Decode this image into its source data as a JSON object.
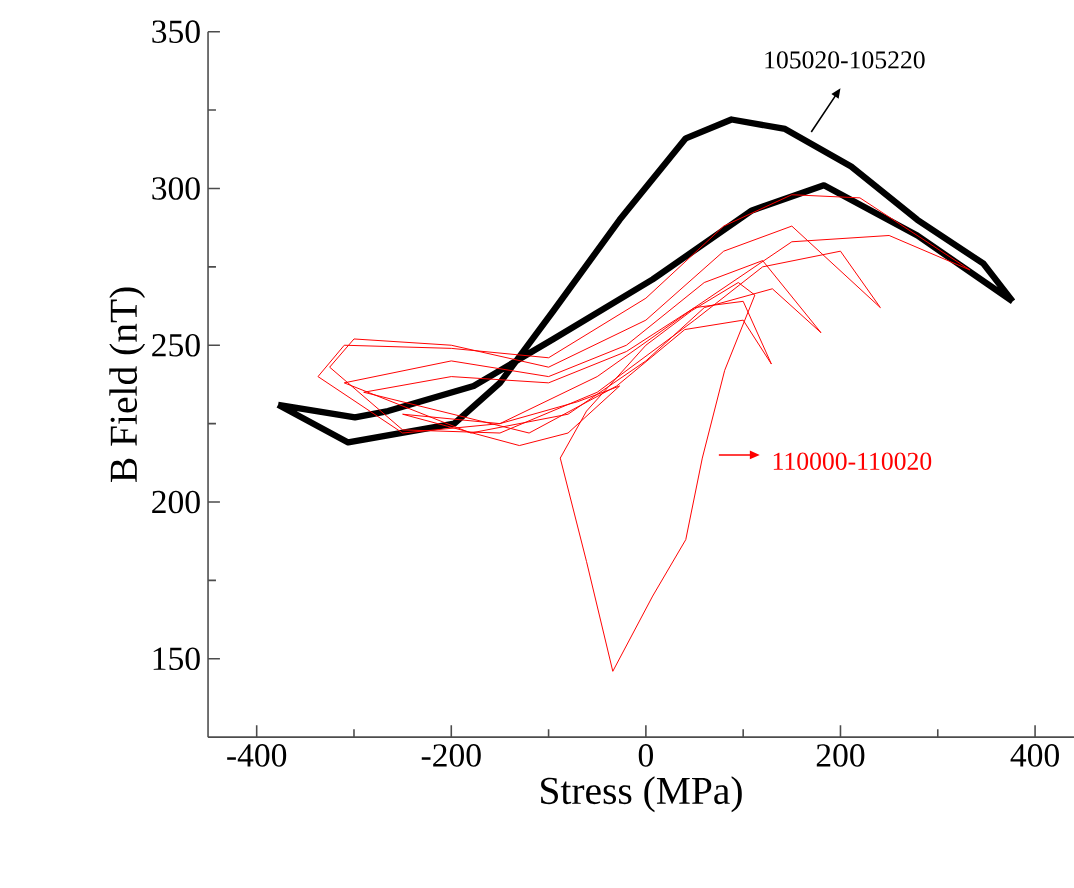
{
  "chart_data": {
    "type": "line",
    "xlabel": "Stress (MPa)",
    "ylabel": "B Field (nT)",
    "xlim": [
      -450,
      440
    ],
    "ylim": [
      125,
      350
    ],
    "xticks": [
      -400,
      -200,
      0,
      200,
      400
    ],
    "yticks": [
      150,
      200,
      250,
      300,
      350
    ],
    "grid": false,
    "x": [
      -378,
      -306,
      -197,
      -150,
      -95,
      -27,
      41,
      88,
      143,
      211,
      279,
      347,
      377,
      null,
      377,
      279,
      183,
      109,
      7,
      -95,
      -177,
      -265,
      -299,
      -378
    ],
    "series": [
      {
        "name": "105020-105220",
        "color": "#000000",
        "values": [
          231,
          219,
          225,
          238,
          261,
          290,
          316,
          322,
          319,
          307,
          290,
          276,
          264,
          null,
          264,
          285,
          301,
          293,
          271,
          252,
          237,
          229,
          227,
          231
        ]
      },
      {
        "name": "110000-110020",
        "color": "#ff0000",
        "x": [
          -88,
          -61,
          -34,
          7,
          41,
          58,
          81,
          112,
          null,
          112,
          95,
          47,
          0,
          -61,
          -88,
          null,
          -337,
          -310,
          -200,
          -100,
          0,
          80,
          150,
          220,
          333,
          null,
          333,
          250,
          150,
          50,
          -50,
          -150,
          -250,
          -337,
          null,
          -325,
          -300,
          -200,
          -100,
          0,
          80,
          150,
          241,
          null,
          241,
          200,
          120,
          50,
          -50,
          -150,
          -250,
          -325,
          null,
          -310,
          -200,
          -100,
          -20,
          60,
          120,
          180,
          null,
          180,
          130,
          60,
          0,
          -80,
          -180,
          -310,
          null,
          -290,
          -200,
          -100,
          -20,
          50,
          100,
          129,
          null,
          129,
          100,
          40,
          -30,
          -120,
          -290,
          null,
          -250,
          -150,
          -70,
          -27,
          null,
          -27,
          -80,
          -130,
          -250
        ],
        "values": [
          214,
          181,
          146,
          170,
          188,
          214,
          242,
          266,
          null,
          266,
          270,
          261,
          250,
          229,
          214,
          null,
          240,
          250,
          249,
          246,
          265,
          288,
          298,
          297,
          274,
          null,
          274,
          285,
          283,
          262,
          240,
          225,
          222,
          240,
          null,
          243,
          252,
          250,
          243,
          258,
          280,
          288,
          262,
          null,
          262,
          280,
          275,
          258,
          235,
          222,
          223,
          243,
          null,
          238,
          245,
          240,
          250,
          270,
          277,
          254,
          null,
          254,
          268,
          262,
          245,
          228,
          222,
          238,
          null,
          235,
          240,
          238,
          248,
          262,
          264,
          244,
          null,
          244,
          258,
          255,
          237,
          222,
          235,
          null,
          228,
          225,
          232,
          237,
          null,
          237,
          222,
          218,
          228
        ]
      }
    ]
  }
}
